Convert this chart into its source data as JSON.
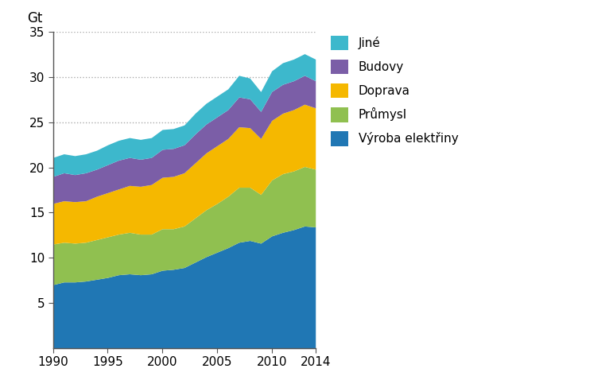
{
  "years": [
    1990,
    1991,
    1992,
    1993,
    1994,
    1995,
    1996,
    1997,
    1998,
    1999,
    2000,
    2001,
    2002,
    2003,
    2004,
    2005,
    2006,
    2007,
    2008,
    2009,
    2010,
    2011,
    2012,
    2013,
    2014
  ],
  "vyroba_elektriny": [
    7.0,
    7.3,
    7.3,
    7.4,
    7.6,
    7.8,
    8.1,
    8.2,
    8.1,
    8.2,
    8.6,
    8.7,
    8.9,
    9.5,
    10.1,
    10.6,
    11.1,
    11.7,
    11.9,
    11.6,
    12.4,
    12.8,
    13.1,
    13.5,
    13.4
  ],
  "prumysl": [
    4.5,
    4.4,
    4.3,
    4.3,
    4.4,
    4.5,
    4.5,
    4.6,
    4.5,
    4.4,
    4.6,
    4.5,
    4.6,
    4.9,
    5.2,
    5.4,
    5.7,
    6.1,
    5.9,
    5.4,
    6.2,
    6.5,
    6.5,
    6.6,
    6.4
  ],
  "doprava": [
    4.5,
    4.6,
    4.6,
    4.6,
    4.8,
    4.9,
    5.0,
    5.2,
    5.3,
    5.5,
    5.7,
    5.8,
    5.9,
    6.1,
    6.3,
    6.4,
    6.4,
    6.7,
    6.6,
    6.2,
    6.6,
    6.7,
    6.8,
    6.9,
    6.8
  ],
  "budovy": [
    3.0,
    3.1,
    3.0,
    3.1,
    3.0,
    3.1,
    3.2,
    3.1,
    3.0,
    3.0,
    3.1,
    3.1,
    3.1,
    3.2,
    3.2,
    3.2,
    3.2,
    3.3,
    3.2,
    3.0,
    3.2,
    3.2,
    3.2,
    3.2,
    3.0
  ],
  "jine": [
    2.1,
    2.1,
    2.1,
    2.1,
    2.1,
    2.2,
    2.2,
    2.2,
    2.2,
    2.2,
    2.2,
    2.2,
    2.2,
    2.3,
    2.3,
    2.3,
    2.3,
    2.4,
    2.3,
    2.2,
    2.3,
    2.4,
    2.4,
    2.4,
    2.4
  ],
  "colors": {
    "vyroba_elektriny": "#2077b4",
    "prumysl": "#90c050",
    "doprava": "#f5b800",
    "budovy": "#7b5ea7",
    "jine": "#3db8cc"
  },
  "labels": {
    "vyroba_elektriny": "Výroba elektřiny",
    "prumysl": "Průmysl",
    "doprava": "Doprava",
    "budovy": "Budovy",
    "jine": "Jiné"
  },
  "ylabel": "Gt",
  "ylim": [
    0,
    35
  ],
  "yticks": [
    5,
    10,
    15,
    20,
    25,
    30,
    35
  ],
  "grid_yticks": [
    25,
    30,
    35
  ],
  "xticks": [
    1990,
    1995,
    2000,
    2005,
    2010,
    2014
  ],
  "grid_color": "#aaaaaa",
  "background_color": "#ffffff",
  "spine_color": "#555555"
}
